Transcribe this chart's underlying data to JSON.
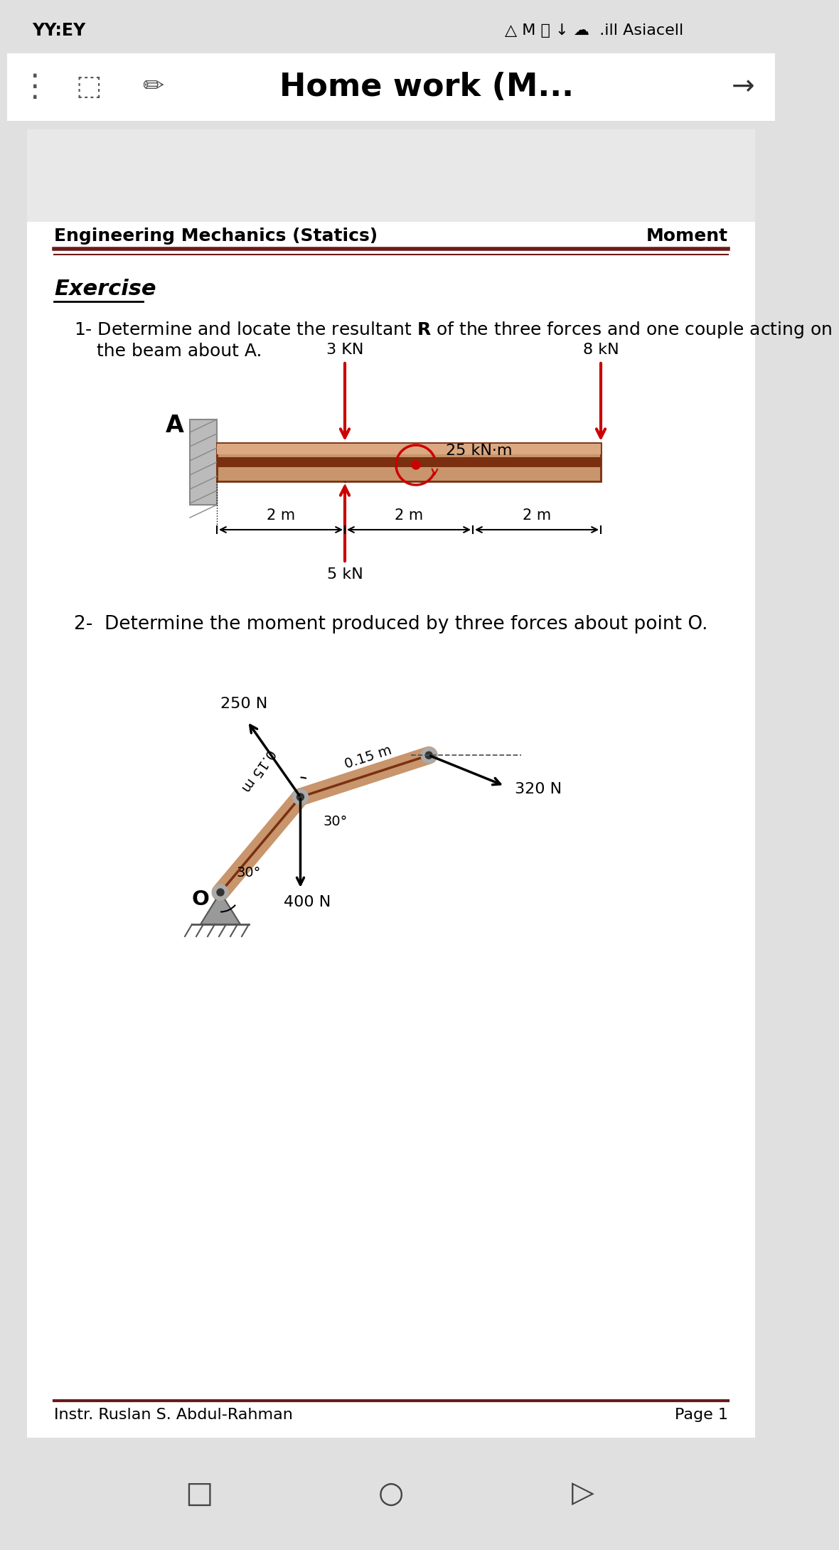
{
  "bg_color": "#e0e0e0",
  "page_bg": "#ffffff",
  "gray_top": "#e8e8e8",
  "header_line_color": "#6b1a1a",
  "header_left": "Engineering Mechanics (Statics)",
  "header_right": "Moment",
  "exercise_label": "Exercise",
  "q1_line1": "1- Determine and locate the resultant $\\mathbf{R}$ of the three forces and one couple acting on",
  "q1_line2": "    the beam about A.",
  "q2_text": "2-  Determine the moment produced by three forces about point O.",
  "footer_left": "Instr. Ruslan S. Abdul-Rahman",
  "footer_right": "Page 1",
  "beam_color": "#c8956c",
  "beam_dark": "#7a3010",
  "beam_light": "#dba882",
  "arrow_color": "#cc0000",
  "force1_label": "3 KN",
  "force2_label": "8 kN",
  "force3_label": "5 kN",
  "couple_label": "25 kN·m",
  "force250_label": "250 N",
  "force320_label": "320 N",
  "force400_label": "400 N",
  "dim1": "2 m",
  "dim2": "2 m",
  "dim3": "2 m",
  "dim_015a": "0.15 m",
  "dim_015b": "0.15 m",
  "angle30a": "30°",
  "angle30b": "30°",
  "point_A": "A",
  "point_O": "O",
  "status_left": "YY:EY",
  "title_text": "Home work (M...",
  "wall_color": "#bbbbbb",
  "wall_edge": "#888888",
  "joint_outer": "#aaaaaa",
  "joint_inner": "#333333"
}
